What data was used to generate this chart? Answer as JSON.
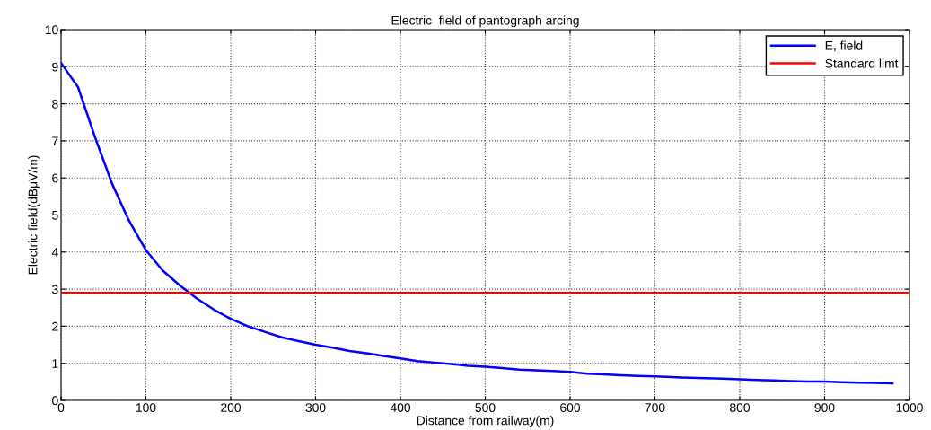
{
  "chart_data": {
    "type": "line",
    "title": "Electric  field of pantograph arcing",
    "xlabel": "Distance from railway(m)",
    "ylabel": "Electric field(dBμV/m)",
    "xlim": [
      0,
      1000
    ],
    "xticks": [
      0,
      100,
      200,
      300,
      400,
      500,
      600,
      700,
      800,
      900,
      1000
    ],
    "ylim": [
      0,
      10
    ],
    "yticks": [
      0,
      1,
      2,
      3,
      4,
      5,
      6,
      7,
      8,
      9,
      10
    ],
    "grid": true,
    "legend": "top right",
    "series": [
      {
        "name": "E, field",
        "color": "#0000ff",
        "x": [
          0,
          20,
          40,
          60,
          80,
          100,
          120,
          140,
          160,
          180,
          200,
          220,
          240,
          260,
          280,
          300,
          320,
          340,
          360,
          380,
          400,
          420,
          440,
          460,
          480,
          500,
          520,
          540,
          560,
          580,
          600,
          620,
          640,
          660,
          680,
          700,
          720,
          740,
          760,
          780,
          800,
          820,
          840,
          860,
          880,
          900,
          920,
          940,
          960,
          980
        ],
        "values": [
          9.1,
          8.45,
          7.1,
          5.85,
          4.85,
          4.05,
          3.5,
          3.1,
          2.75,
          2.45,
          2.2,
          2.0,
          1.85,
          1.7,
          1.6,
          1.5,
          1.42,
          1.33,
          1.27,
          1.2,
          1.13,
          1.06,
          1.02,
          0.98,
          0.93,
          0.91,
          0.87,
          0.83,
          0.81,
          0.79,
          0.77,
          0.72,
          0.7,
          0.68,
          0.66,
          0.65,
          0.63,
          0.61,
          0.6,
          0.59,
          0.57,
          0.55,
          0.54,
          0.52,
          0.51,
          0.51,
          0.49,
          0.48,
          0.47,
          0.46
        ]
      },
      {
        "name": "Standard limt",
        "color": "#ff0000",
        "x": [
          0,
          1000
        ],
        "values": [
          2.9,
          2.9
        ]
      }
    ]
  }
}
